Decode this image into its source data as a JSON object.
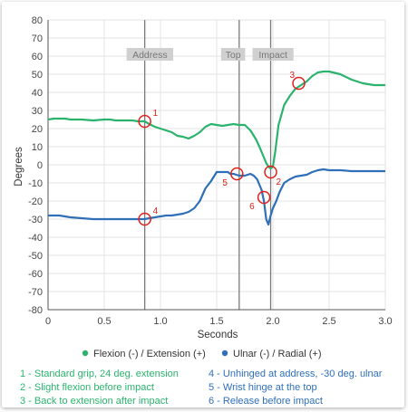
{
  "chart_data": {
    "type": "line",
    "xlabel": "Seconds",
    "ylabel": "Degrees",
    "xlim": [
      0,
      3.0
    ],
    "ylim": [
      -80,
      80
    ],
    "xticks": [
      {
        "v": 0,
        "t": "0"
      },
      {
        "v": 0.5,
        "t": "0.5"
      },
      {
        "v": 1.0,
        "t": "1.0"
      },
      {
        "v": 1.5,
        "t": "1.5"
      },
      {
        "v": 2.0,
        "t": "2.0"
      },
      {
        "v": 2.5,
        "t": "2.5"
      },
      {
        "v": 3.0,
        "t": "3.0"
      }
    ],
    "yticks": [
      80,
      70,
      60,
      50,
      40,
      30,
      20,
      10,
      0,
      -10,
      -20,
      -30,
      -40,
      -50,
      -60,
      -70,
      -80
    ],
    "grid": true,
    "legend_position": "bottom",
    "series": [
      {
        "name": "Flexion (-) / Extension (+)",
        "color": "#2bb36e",
        "x": [
          0,
          0.05,
          0.1,
          0.15,
          0.2,
          0.3,
          0.4,
          0.5,
          0.55,
          0.6,
          0.7,
          0.75,
          0.8,
          0.86,
          0.9,
          0.95,
          1.0,
          1.05,
          1.1,
          1.15,
          1.2,
          1.25,
          1.3,
          1.35,
          1.4,
          1.45,
          1.5,
          1.55,
          1.6,
          1.65,
          1.7,
          1.75,
          1.8,
          1.82,
          1.85,
          1.88,
          1.9,
          1.92,
          1.94,
          1.96,
          1.98,
          2.0,
          2.02,
          2.05,
          2.1,
          2.15,
          2.2,
          2.25,
          2.3,
          2.35,
          2.4,
          2.45,
          2.5,
          2.6,
          2.7,
          2.8,
          2.9,
          3.0
        ],
        "y": [
          25,
          25.5,
          25.5,
          25.5,
          25,
          25,
          24.5,
          25,
          25,
          24.5,
          24.5,
          24.5,
          24,
          24,
          22.5,
          21,
          20,
          19,
          18,
          16,
          15.5,
          14.5,
          16,
          18,
          21,
          22.5,
          22,
          21.5,
          22,
          22.5,
          22,
          22,
          19,
          17,
          14,
          10,
          7,
          4,
          1,
          -1,
          -2,
          -1,
          7,
          22,
          33,
          38,
          42,
          44,
          46,
          49,
          51,
          51.5,
          51.5,
          50,
          47,
          45,
          44,
          44
        ]
      },
      {
        "name": "Ulnar (-) / Radial (+)",
        "color": "#2f6fb8",
        "x": [
          0,
          0.05,
          0.1,
          0.2,
          0.3,
          0.4,
          0.5,
          0.55,
          0.6,
          0.7,
          0.75,
          0.8,
          0.86,
          0.9,
          0.95,
          1.0,
          1.05,
          1.1,
          1.15,
          1.2,
          1.25,
          1.3,
          1.35,
          1.4,
          1.45,
          1.5,
          1.55,
          1.6,
          1.62,
          1.65,
          1.7,
          1.75,
          1.8,
          1.83,
          1.86,
          1.88,
          1.9,
          1.92,
          1.94,
          1.96,
          1.98,
          2.0,
          2.03,
          2.06,
          2.1,
          2.15,
          2.2,
          2.25,
          2.3,
          2.35,
          2.4,
          2.45,
          2.5,
          2.6,
          2.7,
          2.8,
          2.9,
          3.0
        ],
        "y": [
          -28,
          -28,
          -28,
          -29,
          -29.5,
          -30,
          -30,
          -30,
          -30,
          -30,
          -30,
          -30,
          -30,
          -29.5,
          -29,
          -28.5,
          -28,
          -28,
          -27.5,
          -27,
          -26,
          -24,
          -20,
          -13,
          -9,
          -4,
          -4,
          -4,
          -5,
          -5,
          -6,
          -6,
          -5,
          -6,
          -8,
          -11,
          -14,
          -20,
          -30,
          -33,
          -28,
          -24,
          -20,
          -15,
          -10,
          -8,
          -6.5,
          -6,
          -5.5,
          -4,
          -3,
          -2.5,
          -3,
          -3,
          -3.5,
          -3.5,
          -3.5,
          -3.5
        ]
      }
    ],
    "events": [
      {
        "label": "Address",
        "x": 0.86
      },
      {
        "label": "Top",
        "x": 1.7
      },
      {
        "label": "Impact",
        "x": 1.98
      }
    ],
    "markers": [
      {
        "n": "1",
        "x": 0.86,
        "y": 24,
        "label_pos": "ur"
      },
      {
        "n": "2",
        "x": 1.98,
        "y": -4,
        "label_pos": "lr"
      },
      {
        "n": "3",
        "x": 2.23,
        "y": 45,
        "label_pos": "ul"
      },
      {
        "n": "4",
        "x": 0.86,
        "y": -30,
        "label_pos": "ur"
      },
      {
        "n": "5",
        "x": 1.68,
        "y": -5,
        "label_pos": "ll"
      },
      {
        "n": "6",
        "x": 1.92,
        "y": -18,
        "label_pos": "ll"
      }
    ],
    "notes": {
      "left": [
        "1 - Standard grip, 24 deg. extension",
        "2 - Slight flexion before impact",
        "3 - Back to extension after impact"
      ],
      "right": [
        "4 - Unhinged at address, -30 deg. ulnar",
        "5 - Wrist hinge at the top",
        "6 - Release before impact"
      ]
    }
  }
}
